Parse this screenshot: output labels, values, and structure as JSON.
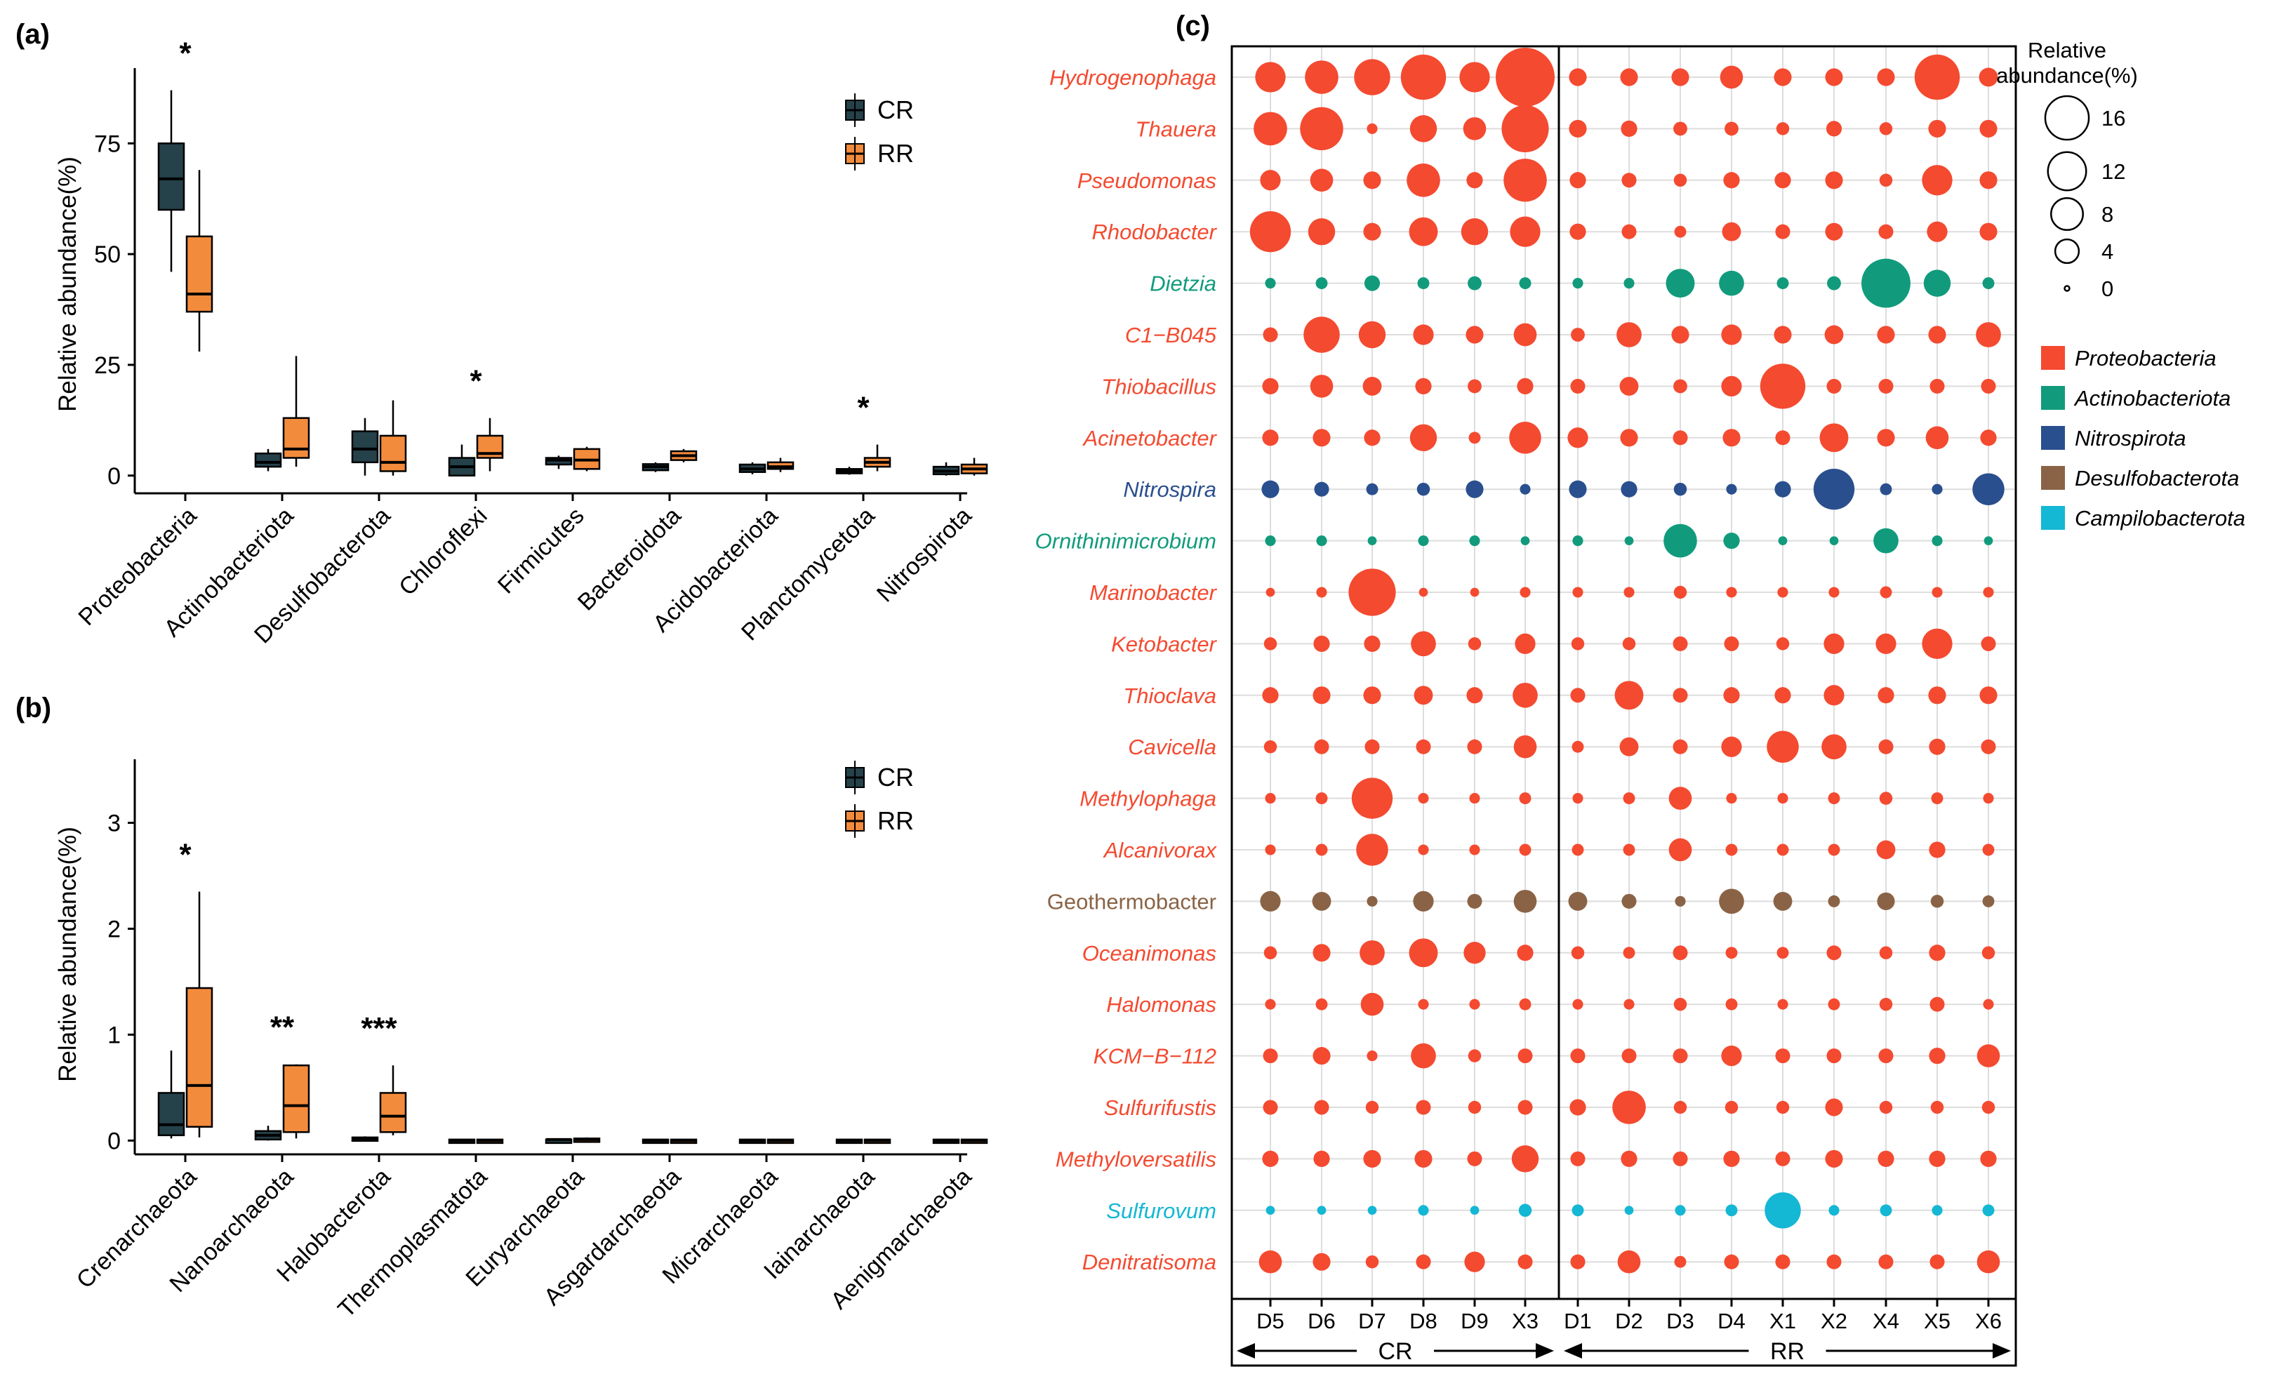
{
  "figure": {
    "panels": [
      "(a)",
      "(b)",
      "(c)"
    ]
  },
  "colors": {
    "CR": "#25414a",
    "RR": "#f38b3c",
    "Proteobacteria": "#f44a30",
    "Actinobacteriota": "#119b7c",
    "Nitrospirota": "#2a4f8e",
    "Desulfobacterota": "#8a6346",
    "Campilobacterota": "#14b7d4",
    "axis": "#000000",
    "grid": "#dddddd"
  },
  "chart_data": [
    {
      "panel": "(a)",
      "type": "box",
      "title": "",
      "xlabel": "",
      "ylabel": "Relative abundance(%)",
      "ylim": [
        -4,
        92
      ],
      "yticks": [
        0,
        25,
        50,
        75
      ],
      "legend": {
        "position": "top-right",
        "entries": [
          "CR",
          "RR"
        ]
      },
      "categories": [
        "Proteobacteria",
        "Actinobacteriota",
        "Desulfobacterota",
        "Chloroflexi",
        "Firmicutes",
        "Bacteroidota",
        "Acidobacteriota",
        "Planctomycetota",
        "Nitrospirota"
      ],
      "significance": [
        "*",
        "",
        "",
        "*",
        "",
        "",
        "",
        "*",
        ""
      ],
      "series": [
        {
          "name": "CR",
          "boxes": [
            {
              "min": 46,
              "q1": 60,
              "median": 67,
              "q3": 75,
              "max": 87
            },
            {
              "min": 1,
              "q1": 2,
              "median": 3,
              "q3": 5,
              "max": 6
            },
            {
              "min": 0,
              "q1": 3,
              "median": 6,
              "q3": 10,
              "max": 13
            },
            {
              "min": 0,
              "q1": 0,
              "median": 2,
              "q3": 4,
              "max": 7
            },
            {
              "min": 1.5,
              "q1": 2.5,
              "median": 3.5,
              "q3": 4,
              "max": 4.5
            },
            {
              "min": 0.8,
              "q1": 1.2,
              "median": 2,
              "q3": 2.6,
              "max": 3
            },
            {
              "min": 0.3,
              "q1": 0.8,
              "median": 1.5,
              "q3": 2.5,
              "max": 3
            },
            {
              "min": 0.2,
              "q1": 0.5,
              "median": 1,
              "q3": 1.5,
              "max": 2
            },
            {
              "min": 0,
              "q1": 0.3,
              "median": 1,
              "q3": 2,
              "max": 3
            }
          ]
        },
        {
          "name": "RR",
          "boxes": [
            {
              "min": 28,
              "q1": 37,
              "median": 41,
              "q3": 54,
              "max": 69
            },
            {
              "min": 2,
              "q1": 4,
              "median": 6,
              "q3": 13,
              "max": 27
            },
            {
              "min": 0,
              "q1": 1,
              "median": 3,
              "q3": 9,
              "max": 17
            },
            {
              "min": 1,
              "q1": 4,
              "median": 5,
              "q3": 9,
              "max": 13
            },
            {
              "min": 1,
              "q1": 1.5,
              "median": 3.5,
              "q3": 6,
              "max": 6.5
            },
            {
              "min": 3,
              "q1": 3.5,
              "median": 4.5,
              "q3": 5.5,
              "max": 6
            },
            {
              "min": 0.8,
              "q1": 1.5,
              "median": 2,
              "q3": 3,
              "max": 4
            },
            {
              "min": 1,
              "q1": 2,
              "median": 3,
              "q3": 4,
              "max": 7
            },
            {
              "min": 0,
              "q1": 0.5,
              "median": 1.5,
              "q3": 2.5,
              "max": 4
            }
          ]
        }
      ]
    },
    {
      "panel": "(b)",
      "type": "box",
      "title": "",
      "xlabel": "",
      "ylabel": "Relative abundance(%)",
      "ylim": [
        -0.13,
        3.6
      ],
      "yticks": [
        0,
        1,
        2,
        3
      ],
      "legend": {
        "position": "top-right",
        "entries": [
          "CR",
          "RR"
        ]
      },
      "categories": [
        "Crenarchaeota",
        "Nanoarchaeota",
        "Halobacterota",
        "Thermoplasmatota",
        "Euryarchaeota",
        "Asgardarchaeota",
        "Micrarchaeota",
        "Iainarchaeota",
        "Aenigmarchaeota"
      ],
      "significance": [
        "*",
        "**",
        "***",
        "",
        "",
        "",
        "",
        "",
        ""
      ],
      "series": [
        {
          "name": "CR",
          "boxes": [
            {
              "min": 0.02,
              "q1": 0.05,
              "median": 0.15,
              "q3": 0.45,
              "max": 0.85
            },
            {
              "min": 0,
              "q1": 0.01,
              "median": 0.05,
              "q3": 0.09,
              "max": 0.14
            },
            {
              "min": 0,
              "q1": 0.01,
              "median": 0.02,
              "q3": 0.03,
              "max": 0.04
            },
            {
              "min": 0,
              "q1": 0,
              "median": 0,
              "q3": 0.01,
              "max": 0.01
            },
            {
              "min": 0,
              "q1": 0,
              "median": 0.01,
              "q3": 0.01,
              "max": 0.02
            },
            {
              "min": 0,
              "q1": 0,
              "median": 0,
              "q3": 0.01,
              "max": 0.01
            },
            {
              "min": 0,
              "q1": 0,
              "median": 0,
              "q3": 0.01,
              "max": 0.01
            },
            {
              "min": 0,
              "q1": 0,
              "median": 0,
              "q3": 0.01,
              "max": 0.01
            },
            {
              "min": 0,
              "q1": 0,
              "median": 0,
              "q3": 0.01,
              "max": 0.01
            }
          ]
        },
        {
          "name": "RR",
          "boxes": [
            {
              "min": 0.03,
              "q1": 0.13,
              "median": 0.52,
              "q3": 1.44,
              "max": 2.35
            },
            {
              "min": 0.02,
              "q1": 0.08,
              "median": 0.33,
              "q3": 0.71,
              "max": 0.72
            },
            {
              "min": 0.05,
              "q1": 0.08,
              "median": 0.23,
              "q3": 0.45,
              "max": 0.71
            },
            {
              "min": 0,
              "q1": 0,
              "median": 0,
              "q3": 0.01,
              "max": 0.01
            },
            {
              "min": 0,
              "q1": 0.01,
              "median": 0.01,
              "q3": 0.02,
              "max": 0.03
            },
            {
              "min": 0,
              "q1": 0,
              "median": 0,
              "q3": 0.01,
              "max": 0.01
            },
            {
              "min": 0,
              "q1": 0,
              "median": 0,
              "q3": 0.01,
              "max": 0.01
            },
            {
              "min": 0,
              "q1": 0,
              "median": 0,
              "q3": 0.01,
              "max": 0.01
            },
            {
              "min": 0,
              "q1": 0,
              "median": 0,
              "q3": 0.01,
              "max": 0.01
            }
          ]
        }
      ]
    },
    {
      "panel": "(c)",
      "type": "bubble",
      "title": "",
      "xlabel": "",
      "ylabel": "",
      "size_legend": {
        "title_line1": "Relative",
        "title_line2": "abundance(%)",
        "values": [
          16,
          12,
          8,
          4,
          0
        ]
      },
      "phylum_legend": [
        "Proteobacteria",
        "Actinobacteriota",
        "Nitrospirota",
        "Desulfobacterota",
        "Campilobacterota"
      ],
      "groups": [
        {
          "name": "CR",
          "samples": [
            "D5",
            "D6",
            "D7",
            "D8",
            "D9",
            "X3"
          ]
        },
        {
          "name": "RR",
          "samples": [
            "D1",
            "D2",
            "D3",
            "D4",
            "X1",
            "X2",
            "X4",
            "X5",
            "X6"
          ]
        }
      ],
      "rows": [
        {
          "genus": "Hydrogenophaga",
          "phylum": "Proteobacteria",
          "values": [
            4,
            5,
            6,
            10,
            4,
            18,
            1,
            1,
            1,
            2,
            1,
            1,
            1,
            10,
            1.2
          ]
        },
        {
          "genus": "Thauera",
          "phylum": "Proteobacteria",
          "values": [
            5,
            9,
            0.2,
            3,
            2,
            11,
            1,
            0.8,
            0.5,
            0.5,
            0.4,
            0.7,
            0.4,
            1,
            1
          ]
        },
        {
          "genus": "Pseudomonas",
          "phylum": "Proteobacteria",
          "values": [
            1.5,
            2,
            1,
            5,
            0.8,
            9,
            0.8,
            0.6,
            0.4,
            0.8,
            0.8,
            1,
            0.4,
            4,
            1
          ]
        },
        {
          "genus": "Rhodobacter",
          "phylum": "Proteobacteria",
          "values": [
            8,
            3,
            1,
            3.5,
            3,
            4,
            0.8,
            0.6,
            0.3,
            1.2,
            0.6,
            1,
            0.6,
            1.5,
            1
          ]
        },
        {
          "genus": "Dietzia",
          "phylum": "Actinobacteriota",
          "values": [
            0.2,
            0.3,
            0.7,
            0.3,
            0.5,
            0.3,
            0.2,
            0.2,
            3.5,
            2.5,
            0.3,
            0.5,
            12,
            3,
            0.3
          ]
        },
        {
          "genus": "C1−B045",
          "phylum": "Proteobacteria",
          "values": [
            0.6,
            6,
            3,
            1.5,
            1,
            2,
            0.5,
            2.5,
            1,
            1.5,
            1,
            1.2,
            1,
            1,
            2.5
          ]
        },
        {
          "genus": "Thiobacillus",
          "phylum": "Proteobacteria",
          "values": [
            0.8,
            2,
            1.2,
            0.8,
            0.5,
            0.8,
            0.6,
            1.2,
            0.5,
            1.5,
            10,
            0.6,
            0.6,
            0.6,
            0.6
          ]
        },
        {
          "genus": "Acinetobacter",
          "phylum": "Proteobacteria",
          "values": [
            0.8,
            1,
            0.8,
            3,
            0.3,
            4.5,
            1.5,
            1,
            0.6,
            1,
            0.6,
            3.5,
            1,
            2,
            0.8
          ]
        },
        {
          "genus": "Nitrospira",
          "phylum": "Nitrospirota",
          "values": [
            1,
            0.6,
            0.3,
            0.4,
            1,
            0.2,
            1,
            0.8,
            0.4,
            0.2,
            0.8,
            8,
            0.3,
            0.2,
            4.5
          ]
        },
        {
          "genus": "Ornithinimicrobium",
          "phylum": "Actinobacteriota",
          "values": [
            0.2,
            0.2,
            0.1,
            0.2,
            0.2,
            0.1,
            0.2,
            0.1,
            5,
            0.8,
            0.1,
            0.1,
            2.5,
            0.2,
            0.1
          ]
        },
        {
          "genus": "Marinobacter",
          "phylum": "Proteobacteria",
          "values": [
            0.1,
            0.2,
            11,
            0.1,
            0.1,
            0.2,
            0.2,
            0.2,
            0.4,
            0.2,
            0.2,
            0.2,
            0.3,
            0.2,
            0.2
          ]
        },
        {
          "genus": "Ketobacter",
          "phylum": "Proteobacteria",
          "values": [
            0.4,
            0.8,
            0.8,
            2.5,
            0.4,
            1.5,
            0.4,
            0.4,
            0.6,
            0.6,
            0.4,
            1.5,
            1.5,
            4,
            0.6
          ]
        },
        {
          "genus": "Thioclava",
          "phylum": "Proteobacteria",
          "values": [
            0.8,
            1,
            1,
            1.2,
            0.8,
            2.5,
            0.6,
            3.5,
            0.6,
            0.8,
            0.8,
            1.5,
            0.8,
            1,
            1
          ]
        },
        {
          "genus": "Cavicella",
          "phylum": "Proteobacteria",
          "values": [
            0.4,
            0.6,
            0.6,
            0.6,
            0.6,
            2,
            0.3,
            1.2,
            0.6,
            1.5,
            4.5,
            2.5,
            0.6,
            0.8,
            0.6
          ]
        },
        {
          "genus": "Methylophaga",
          "phylum": "Proteobacteria",
          "values": [
            0.2,
            0.3,
            8,
            0.2,
            0.2,
            0.3,
            0.2,
            0.3,
            2,
            0.2,
            0.2,
            0.3,
            0.4,
            0.3,
            0.2
          ]
        },
        {
          "genus": "Alcanivorax",
          "phylum": "Proteobacteria",
          "values": [
            0.2,
            0.3,
            4.5,
            0.2,
            0.2,
            0.3,
            0.3,
            0.3,
            2,
            0.3,
            0.3,
            0.3,
            1.2,
            0.8,
            0.3
          ]
        },
        {
          "genus": "Geothermobacter",
          "phylum": "Desulfobacterota",
          "values": [
            1.5,
            1.2,
            0.2,
            1.5,
            0.6,
            2,
            1.2,
            0.6,
            0.2,
            2.5,
            1.2,
            0.3,
            1,
            0.4,
            0.3
          ]
        },
        {
          "genus": "Oceanimonas",
          "phylum": "Proteobacteria",
          "values": [
            0.4,
            1,
            2.5,
            3.5,
            1.8,
            0.8,
            0.4,
            0.3,
            0.6,
            0.3,
            0.3,
            0.6,
            0.4,
            0.8,
            0.4
          ]
        },
        {
          "genus": "Halomonas",
          "phylum": "Proteobacteria",
          "values": [
            0.2,
            0.3,
            2,
            0.2,
            0.2,
            0.3,
            0.2,
            0.2,
            0.4,
            0.3,
            0.2,
            0.3,
            0.4,
            0.6,
            0.2
          ]
        },
        {
          "genus": "KCM−B−112",
          "phylum": "Proteobacteria",
          "values": [
            0.6,
            1,
            0.2,
            2.5,
            0.4,
            0.6,
            0.6,
            0.6,
            0.6,
            1.5,
            0.6,
            0.6,
            0.6,
            0.8,
            2
          ]
        },
        {
          "genus": "Sulfurifustis",
          "phylum": "Proteobacteria",
          "values": [
            0.6,
            0.6,
            0.4,
            0.6,
            0.4,
            0.6,
            0.8,
            5,
            0.4,
            0.4,
            0.4,
            1,
            0.4,
            0.4,
            0.4
          ]
        },
        {
          "genus": "Methyloversatilis",
          "phylum": "Proteobacteria",
          "values": [
            0.8,
            0.8,
            1,
            1,
            0.6,
            3,
            0.6,
            0.8,
            0.6,
            0.8,
            0.6,
            1,
            0.8,
            0.8,
            0.8
          ]
        },
        {
          "genus": "Sulfurovum",
          "phylum": "Campilobacterota",
          "values": [
            0.1,
            0.1,
            0.1,
            0.2,
            0.1,
            0.4,
            0.3,
            0.1,
            0.2,
            0.3,
            6,
            0.2,
            0.3,
            0.2,
            0.3
          ]
        },
        {
          "genus": "Denitratisoma",
          "phylum": "Proteobacteria",
          "values": [
            2,
            1,
            0.4,
            0.6,
            1.5,
            0.6,
            0.6,
            2,
            0.3,
            0.6,
            0.6,
            0.6,
            0.6,
            0.6,
            2
          ]
        }
      ]
    }
  ]
}
